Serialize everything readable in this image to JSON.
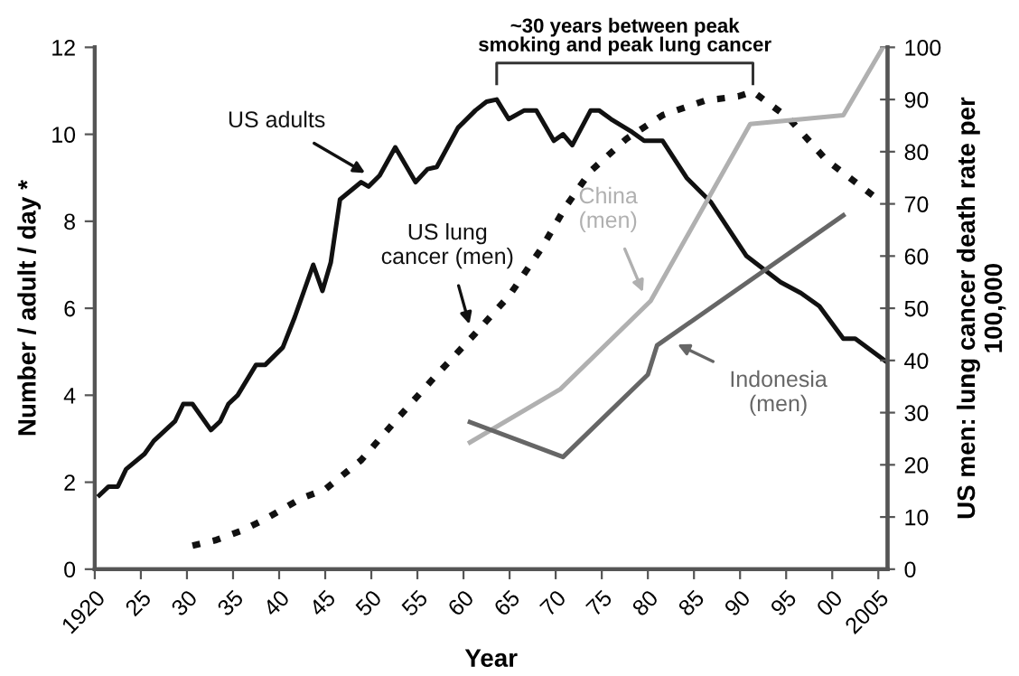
{
  "chart_data": {
    "type": "line",
    "xlabel": "Year",
    "ylabel": "Number / adult / day *",
    "y2label": "US men: lung cancer death rate per\n100,000",
    "annotations": [
      "~30 years between peak\nsmoking and peak lung cancer"
    ],
    "xlim": [
      1920,
      2006
    ],
    "xticks": [
      1920,
      {
        "value": 1925,
        "label": "25"
      },
      {
        "value": 1930,
        "label": "30"
      },
      {
        "value": 1935,
        "label": "35"
      },
      {
        "value": 1940,
        "label": "40"
      },
      {
        "value": 1945,
        "label": "45"
      },
      {
        "value": 1950,
        "label": "50"
      },
      {
        "value": 1955,
        "label": "55"
      },
      {
        "value": 1960,
        "label": "60"
      },
      {
        "value": 1965,
        "label": "65"
      },
      {
        "value": 1970,
        "label": "70"
      },
      {
        "value": 1975,
        "label": "75"
      },
      {
        "value": 1980,
        "label": "80"
      },
      {
        "value": 1985,
        "label": "85"
      },
      {
        "value": 1990,
        "label": "90"
      },
      {
        "value": 1995,
        "label": "95"
      },
      {
        "value": 2000,
        "label": "00"
      },
      2005
    ],
    "ylim": [
      0,
      12
    ],
    "yticks": [
      0,
      2,
      4,
      6,
      8,
      10,
      12
    ],
    "y2lim": [
      0,
      100
    ],
    "y2ticks": [
      0,
      10,
      20,
      30,
      40,
      50,
      60,
      70,
      80,
      90,
      100
    ],
    "grid": false,
    "legend": false,
    "marker": "none",
    "series": [
      {
        "name": "US adults",
        "color": "#111111",
        "line_style": "solid",
        "x": [
          1920.5,
          1921.5,
          1922.5,
          1923.4,
          1925.4,
          1926.4,
          1928.7,
          1929.6,
          1930.6,
          1932.6,
          1933.6,
          1934.5,
          1935.5,
          1937.5,
          1938.5,
          1940.4,
          1941.7,
          1943.7,
          1944.7,
          1945.6,
          1946.6,
          1948.9,
          1949.7,
          1950.9,
          1952.6,
          1954.8,
          1956.1,
          1957.1,
          1959.4,
          1961.3,
          1962.5,
          1963.6,
          1964.9,
          1966.6,
          1967.9,
          1969.8,
          1970.8,
          1971.8,
          1973.8,
          1974.7,
          1976.0,
          1978.3,
          1979.6,
          1981.6,
          1984.2,
          1986.8,
          1990.7,
          1994.4,
          1996.6,
          1998.6,
          2001.2,
          2002.5,
          2006.0
        ],
        "values": [
          1.7,
          1.9,
          1.9,
          2.3,
          2.65,
          2.95,
          3.4,
          3.8,
          3.8,
          3.2,
          3.4,
          3.8,
          4.0,
          4.7,
          4.7,
          5.1,
          5.8,
          7.0,
          6.4,
          7.05,
          8.5,
          8.9,
          8.8,
          9.05,
          9.7,
          8.9,
          9.2,
          9.25,
          10.15,
          10.55,
          10.75,
          10.8,
          10.35,
          10.55,
          10.55,
          9.85,
          10.0,
          9.75,
          10.55,
          10.55,
          10.35,
          10.05,
          9.85,
          9.85,
          9.0,
          8.45,
          7.2,
          6.6,
          6.35,
          6.05,
          5.3,
          5.3,
          4.75
        ]
      },
      {
        "name": "US lung\ncancer (men)",
        "color": "#111111",
        "line_style": "dotted",
        "axis": "y2",
        "x": [
          1930.6,
          1933.2,
          1935.8,
          1938.5,
          1942.4,
          1945.0,
          1948.9,
          1952.8,
          1956.8,
          1961.3,
          1965.0,
          1968.5,
          1971.1,
          1973.8,
          1977.7,
          1981.6,
          1986.2,
          1989.8,
          1991.4,
          1995.3,
          1999.3,
          2005.1
        ],
        "values": [
          4.5,
          5.6,
          7.3,
          9.6,
          13.6,
          15.3,
          20.9,
          28.8,
          36.7,
          45.2,
          52.5,
          61.6,
          69.5,
          76.3,
          82.5,
          87.0,
          89.8,
          90.6,
          91.5,
          86.4,
          78.5,
          70.7
        ]
      },
      {
        "name": "China\n(men)",
        "color": "#b0b0b0",
        "line_style": "solid",
        "axis": "y2",
        "x": [
          1960.7,
          1970.5,
          1980.3,
          1991.1,
          2001.2,
          2005.5
        ],
        "values": [
          24.3,
          34.5,
          51.4,
          85.3,
          87.0,
          100
        ]
      },
      {
        "name": "Indonesia\n(men)",
        "color": "#666666",
        "line_style": "solid",
        "axis": "y2",
        "x": [
          1960.7,
          1970.8,
          1980.0,
          1981.0,
          2001.2
        ],
        "values": [
          28.2,
          21.5,
          37.3,
          42.9,
          67.8
        ]
      }
    ]
  }
}
